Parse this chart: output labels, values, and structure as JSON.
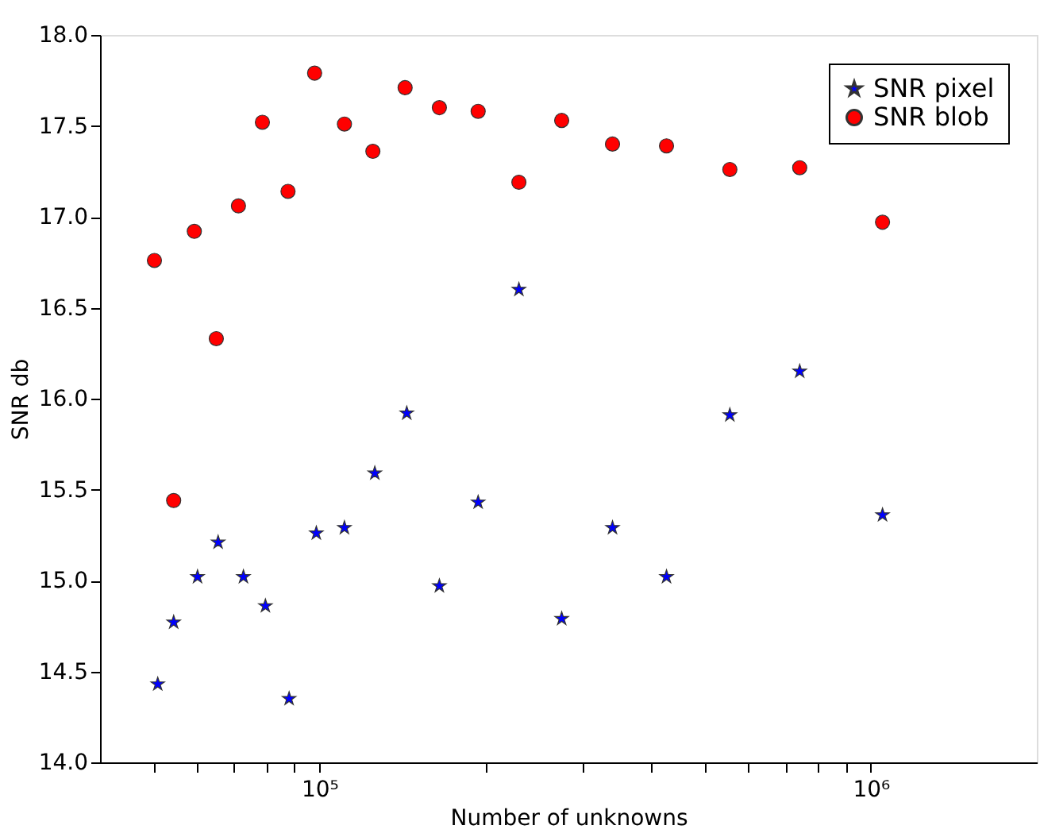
{
  "chart_data": {
    "type": "scatter",
    "xlabel": "Number of unknowns",
    "ylabel": "SNR db",
    "log": "x",
    "grid": false,
    "legend": "top right",
    "xlim": [
      40000,
      2000000
    ],
    "ylim": [
      14.0,
      18.0
    ],
    "xticks": [
      {
        "value": 50000,
        "label": null
      },
      {
        "value": 60000,
        "label": null
      },
      {
        "value": 70000,
        "label": null
      },
      {
        "value": 80000,
        "label": null
      },
      {
        "value": 90000,
        "label": null
      },
      {
        "value": 100000,
        "label": "10⁵"
      },
      {
        "value": 200000,
        "label": null
      },
      {
        "value": 300000,
        "label": null
      },
      {
        "value": 400000,
        "label": null
      },
      {
        "value": 500000,
        "label": null
      },
      {
        "value": 600000,
        "label": null
      },
      {
        "value": 700000,
        "label": null
      },
      {
        "value": 800000,
        "label": null
      },
      {
        "value": 900000,
        "label": null
      },
      {
        "value": 1000000,
        "label": "10⁶"
      }
    ],
    "yticks": [
      {
        "value": 14.0,
        "label": "14.0"
      },
      {
        "value": 14.5,
        "label": "14.5"
      },
      {
        "value": 15.0,
        "label": "15.0"
      },
      {
        "value": 15.5,
        "label": "15.5"
      },
      {
        "value": 16.0,
        "label": "16.0"
      },
      {
        "value": 16.5,
        "label": "16.5"
      },
      {
        "value": 17.0,
        "label": "17.0"
      },
      {
        "value": 17.5,
        "label": "17.5"
      },
      {
        "value": 18.0,
        "label": "18.0"
      }
    ],
    "series": [
      {
        "name": "SNR pixel",
        "color": "#0000ff",
        "marker": "star",
        "x": [
          50900,
          54400,
          60100,
          65500,
          72800,
          79800,
          88100,
          98700,
          111000,
          126000,
          144000,
          165000,
          194000,
          230000,
          275000,
          340000,
          426000,
          555000,
          743000,
          1050000
        ],
        "values": [
          14.43,
          14.77,
          15.02,
          15.21,
          15.02,
          14.86,
          14.35,
          15.26,
          15.29,
          15.59,
          15.92,
          14.97,
          15.43,
          16.6,
          14.79,
          15.29,
          15.02,
          15.91,
          16.15,
          15.36
        ]
      },
      {
        "name": "SNR blob",
        "color": "#ff0000",
        "marker": "circle",
        "x": [
          50200,
          54400,
          59300,
          65000,
          71300,
          78800,
          87700,
          98000,
          111000,
          125000,
          143000,
          165000,
          194000,
          230000,
          275000,
          340000,
          426000,
          555000,
          743000,
          1050000
        ],
        "values": [
          16.76,
          15.44,
          16.92,
          16.33,
          17.06,
          17.52,
          17.14,
          17.79,
          17.51,
          17.36,
          17.71,
          17.6,
          17.58,
          17.19,
          17.53,
          17.4,
          17.39,
          17.26,
          17.27,
          16.97
        ]
      }
    ]
  }
}
